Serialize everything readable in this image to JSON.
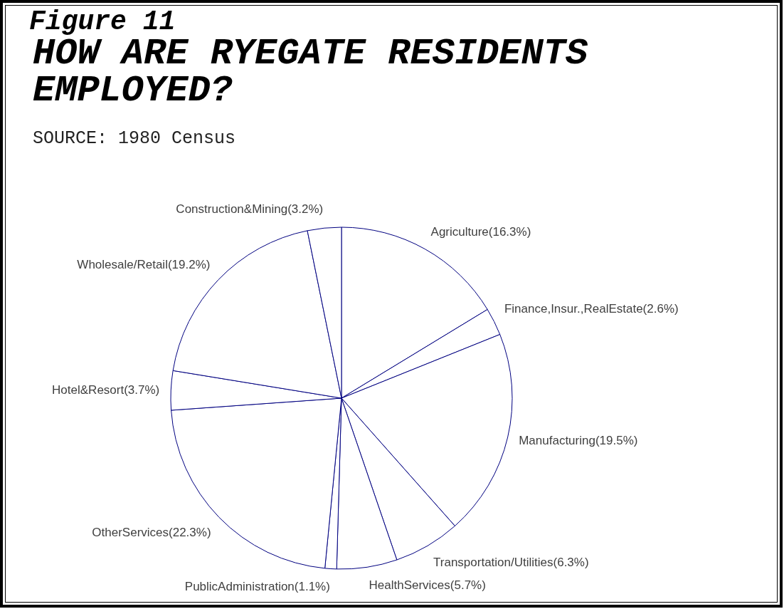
{
  "chart_data": {
    "type": "pie",
    "title": "HOW ARE RYEGATE RESIDENTS EMPLOYED?",
    "annotations": [
      "Figure 11",
      "SOURCE: 1980 Census"
    ],
    "categories": [
      "Agriculture",
      "Finance,Insur.,RealEstate",
      "Manufacturing",
      "Transportation/Utilities",
      "HealthServices",
      "PublicAdministration",
      "OtherServices",
      "Hotel&Resort",
      "Wholesale/Retail",
      "Construction&Mining"
    ],
    "values": [
      16.3,
      2.6,
      19.5,
      6.3,
      5.7,
      1.1,
      22.3,
      3.7,
      19.2,
      3.2
    ],
    "value_labels": [
      "(16.3%)",
      "(2.6%)",
      "(19.5%)",
      "(6.3%)",
      "(5.7%)",
      "(1.1%)",
      "(22.3%)",
      "(3.7%)",
      "(19.2%)",
      "(3.2%)"
    ],
    "colors": [
      "#ffffff",
      "#ffffff",
      "#ffffff",
      "#ffffff",
      "#ffffff",
      "#ffffff",
      "#ffffff",
      "#ffffff",
      "#ffffff",
      "#ffffff"
    ]
  }
}
